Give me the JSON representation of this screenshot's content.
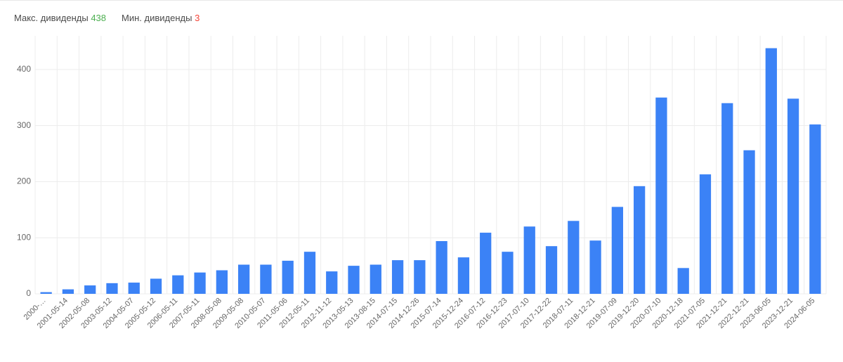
{
  "legend": {
    "max_label": "Макс. дивиденды",
    "max_value": "438",
    "min_label": "Мин. дивиденды",
    "min_value": "3"
  },
  "chart": {
    "type": "bar",
    "background_color": "#ffffff",
    "grid_color": "#ececec",
    "bar_color": "#3b82f6",
    "bar_width_ratio": 0.52,
    "ylim": [
      0,
      460
    ],
    "yticks": [
      0,
      100,
      200,
      300,
      400
    ],
    "ytick_fontsize": 12,
    "xtick_fontsize": 11,
    "xtick_rotation": -45,
    "axis_text_color": "#666666",
    "categories": [
      "2000-…",
      "2001-05-14",
      "2002-05-08",
      "2003-05-12",
      "2004-05-07",
      "2005-05-12",
      "2006-05-11",
      "2007-05-11",
      "2008-05-08",
      "2009-05-08",
      "2010-05-07",
      "2011-05-06",
      "2012-05-11",
      "2012-11-12",
      "2013-05-13",
      "2013-08-15",
      "2014-07-15",
      "2014-12-26",
      "2015-07-14",
      "2015-12-24",
      "2016-07-12",
      "2016-12-23",
      "2017-07-10",
      "2017-12-22",
      "2018-07-11",
      "2018-12-21",
      "2019-07-09",
      "2019-12-20",
      "2020-07-10",
      "2020-12-18",
      "2021-07-05",
      "2021-12-21",
      "2022-12-21",
      "2023-06-05",
      "2023-12-21",
      "2024-06-05"
    ],
    "values": [
      3,
      8,
      15,
      19,
      20,
      27,
      33,
      38,
      42,
      52,
      52,
      59,
      75,
      40,
      50,
      52,
      60,
      60,
      94,
      65,
      109,
      75,
      120,
      85,
      130,
      95,
      155,
      192,
      350,
      46,
      213,
      340,
      256,
      438,
      348,
      302
    ]
  }
}
